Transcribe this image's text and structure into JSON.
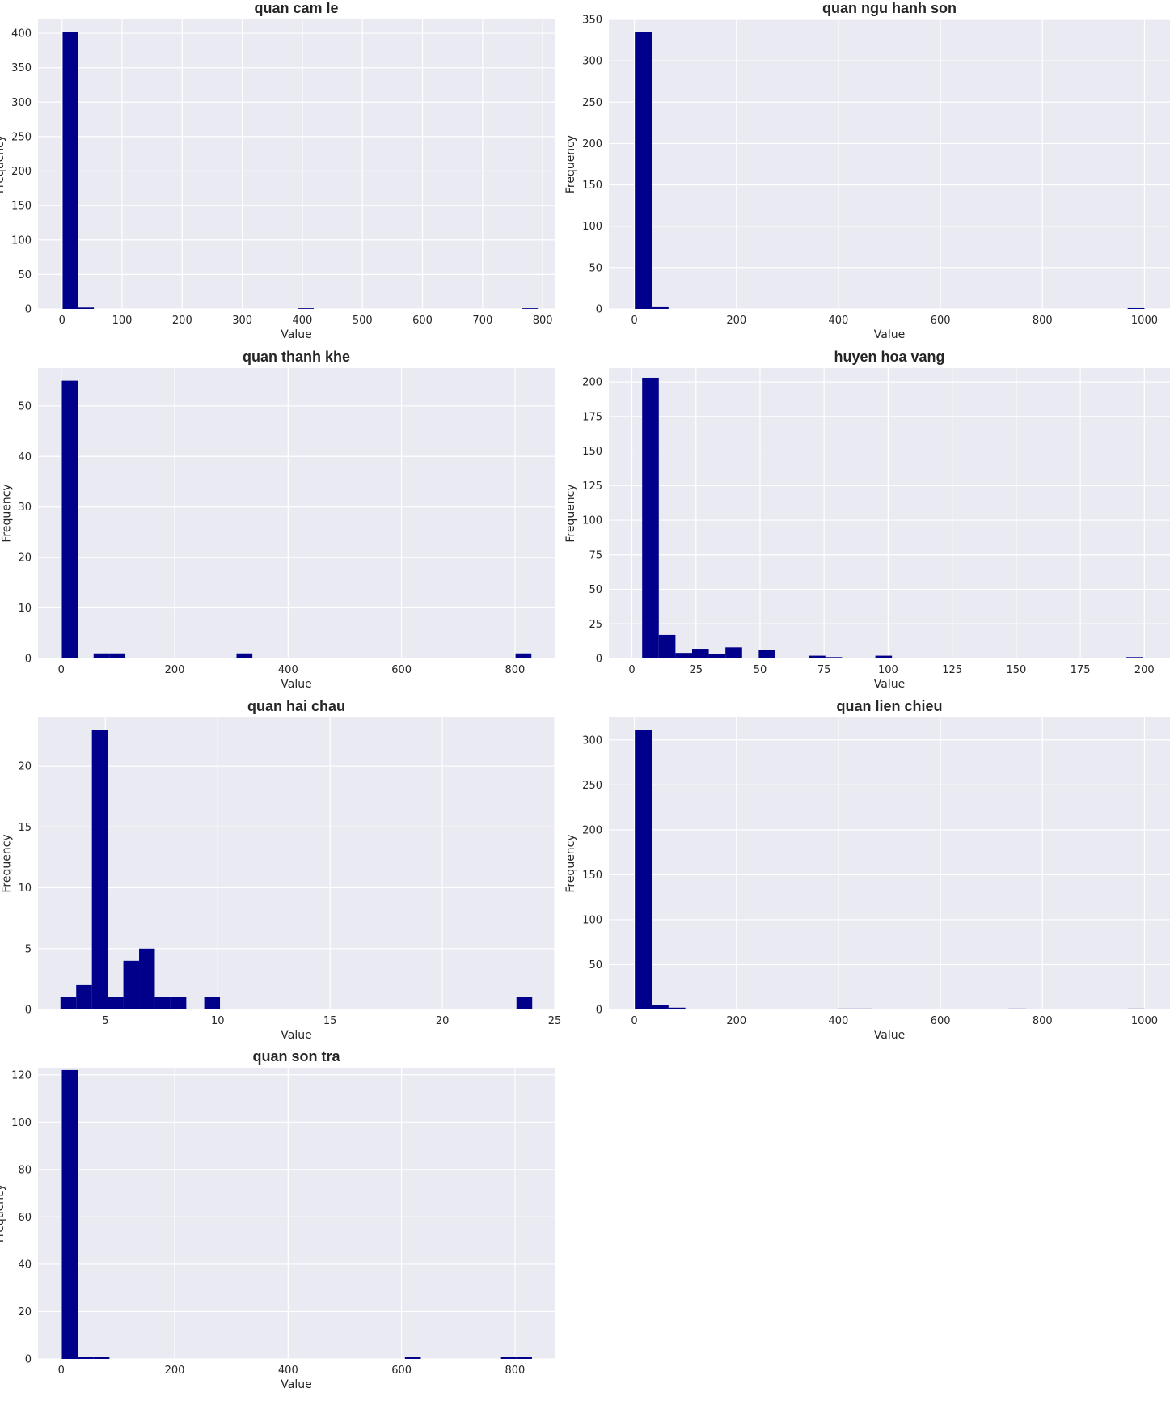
{
  "chart_data": [
    {
      "type": "bar",
      "title": "quan cam le",
      "xlabel": "Value",
      "ylabel": "Frequency",
      "xlim": [
        -40,
        820
      ],
      "ylim": [
        0,
        420
      ],
      "xticks": [
        0,
        100,
        200,
        300,
        400,
        500,
        600,
        700,
        800
      ],
      "yticks": [
        0,
        50,
        100,
        150,
        200,
        250,
        300,
        350,
        400
      ],
      "grid": true,
      "bins": [
        {
          "x0": 1,
          "x1": 27,
          "count": 402
        },
        {
          "x0": 27,
          "x1": 53,
          "count": 2
        },
        {
          "x0": 393,
          "x1": 419,
          "count": 1
        },
        {
          "x0": 766,
          "x1": 792,
          "count": 1
        }
      ]
    },
    {
      "type": "bar",
      "title": "quan ngu hanh son",
      "xlabel": "Value",
      "ylabel": "Frequency",
      "xlim": [
        -50,
        1050
      ],
      "ylim": [
        0,
        350
      ],
      "xticks": [
        0,
        200,
        400,
        600,
        800,
        1000
      ],
      "yticks": [
        0,
        50,
        100,
        150,
        200,
        250,
        300,
        350
      ],
      "grid": true,
      "bins": [
        {
          "x0": 1,
          "x1": 34,
          "count": 335
        },
        {
          "x0": 34,
          "x1": 67,
          "count": 3
        },
        {
          "x0": 967,
          "x1": 1000,
          "count": 1
        }
      ]
    },
    {
      "type": "bar",
      "title": "quan thanh khe",
      "xlabel": "Value",
      "ylabel": "Frequency",
      "xlim": [
        -41,
        870
      ],
      "ylim": [
        0,
        57.5
      ],
      "xticks": [
        0,
        200,
        400,
        600,
        800
      ],
      "yticks": [
        0,
        10,
        20,
        30,
        40,
        50
      ],
      "grid": true,
      "bins": [
        {
          "x0": 1,
          "x1": 29,
          "count": 55
        },
        {
          "x0": 57,
          "x1": 85,
          "count": 1
        },
        {
          "x0": 85,
          "x1": 113,
          "count": 1
        },
        {
          "x0": 309,
          "x1": 337,
          "count": 1
        },
        {
          "x0": 801,
          "x1": 829,
          "count": 1
        }
      ]
    },
    {
      "type": "bar",
      "title": "huyen hoa vang",
      "xlabel": "Value",
      "ylabel": "Frequency",
      "xlim": [
        -9,
        210
      ],
      "ylim": [
        0,
        210
      ],
      "xticks": [
        0,
        25,
        50,
        75,
        100,
        125,
        150,
        175,
        200
      ],
      "yticks": [
        0,
        25,
        50,
        75,
        100,
        125,
        150,
        175,
        200
      ],
      "grid": true,
      "bins": [
        {
          "x0": 4,
          "x1": 10.5,
          "count": 203
        },
        {
          "x0": 10.5,
          "x1": 17,
          "count": 17
        },
        {
          "x0": 17,
          "x1": 23.5,
          "count": 4
        },
        {
          "x0": 23.5,
          "x1": 30,
          "count": 7
        },
        {
          "x0": 30,
          "x1": 36.5,
          "count": 3
        },
        {
          "x0": 36.5,
          "x1": 43,
          "count": 8
        },
        {
          "x0": 49.5,
          "x1": 56,
          "count": 6
        },
        {
          "x0": 69,
          "x1": 75.5,
          "count": 2
        },
        {
          "x0": 75.5,
          "x1": 82,
          "count": 1
        },
        {
          "x0": 95,
          "x1": 101.5,
          "count": 2
        },
        {
          "x0": 193,
          "x1": 199.5,
          "count": 1
        }
      ]
    },
    {
      "type": "bar",
      "title": "quan hai chau",
      "xlabel": "Value",
      "ylabel": "Frequency",
      "xlim": [
        2,
        25
      ],
      "ylim": [
        0,
        24
      ],
      "xticks": [
        5,
        10,
        15,
        20,
        25
      ],
      "yticks": [
        0,
        5,
        10,
        15,
        20
      ],
      "grid": true,
      "bins": [
        {
          "x0": 3.0,
          "x1": 3.7,
          "count": 1
        },
        {
          "x0": 3.7,
          "x1": 4.4,
          "count": 2
        },
        {
          "x0": 4.4,
          "x1": 5.1,
          "count": 23
        },
        {
          "x0": 5.1,
          "x1": 5.8,
          "count": 1
        },
        {
          "x0": 5.8,
          "x1": 6.5,
          "count": 4
        },
        {
          "x0": 6.5,
          "x1": 7.2,
          "count": 5
        },
        {
          "x0": 7.2,
          "x1": 7.9,
          "count": 1
        },
        {
          "x0": 7.9,
          "x1": 8.6,
          "count": 1
        },
        {
          "x0": 9.4,
          "x1": 10.1,
          "count": 1
        },
        {
          "x0": 23.3,
          "x1": 24.0,
          "count": 1
        }
      ]
    },
    {
      "type": "bar",
      "title": "quan lien chieu",
      "xlabel": "Value",
      "ylabel": "Frequency",
      "xlim": [
        -50,
        1050
      ],
      "ylim": [
        0,
        325
      ],
      "xticks": [
        0,
        200,
        400,
        600,
        800,
        1000
      ],
      "yticks": [
        0,
        50,
        100,
        150,
        200,
        250,
        300
      ],
      "grid": true,
      "bins": [
        {
          "x0": 1,
          "x1": 34,
          "count": 311
        },
        {
          "x0": 34,
          "x1": 67,
          "count": 5
        },
        {
          "x0": 67,
          "x1": 100,
          "count": 2
        },
        {
          "x0": 400,
          "x1": 433,
          "count": 1
        },
        {
          "x0": 433,
          "x1": 466,
          "count": 1
        },
        {
          "x0": 734,
          "x1": 767,
          "count": 1
        },
        {
          "x0": 967,
          "x1": 1000,
          "count": 1
        }
      ]
    },
    {
      "type": "bar",
      "title": "quan son tra",
      "xlabel": "Value",
      "ylabel": "Frequency",
      "xlim": [
        -41,
        870
      ],
      "ylim": [
        0,
        123
      ],
      "xticks": [
        0,
        200,
        400,
        600,
        800
      ],
      "yticks": [
        0,
        20,
        40,
        60,
        80,
        100,
        120
      ],
      "grid": true,
      "bins": [
        {
          "x0": 1,
          "x1": 29,
          "count": 122
        },
        {
          "x0": 29,
          "x1": 57,
          "count": 1
        },
        {
          "x0": 57,
          "x1": 85,
          "count": 1
        },
        {
          "x0": 606,
          "x1": 634,
          "count": 1
        },
        {
          "x0": 774,
          "x1": 802,
          "count": 1
        },
        {
          "x0": 802,
          "x1": 830,
          "count": 1
        }
      ]
    }
  ]
}
